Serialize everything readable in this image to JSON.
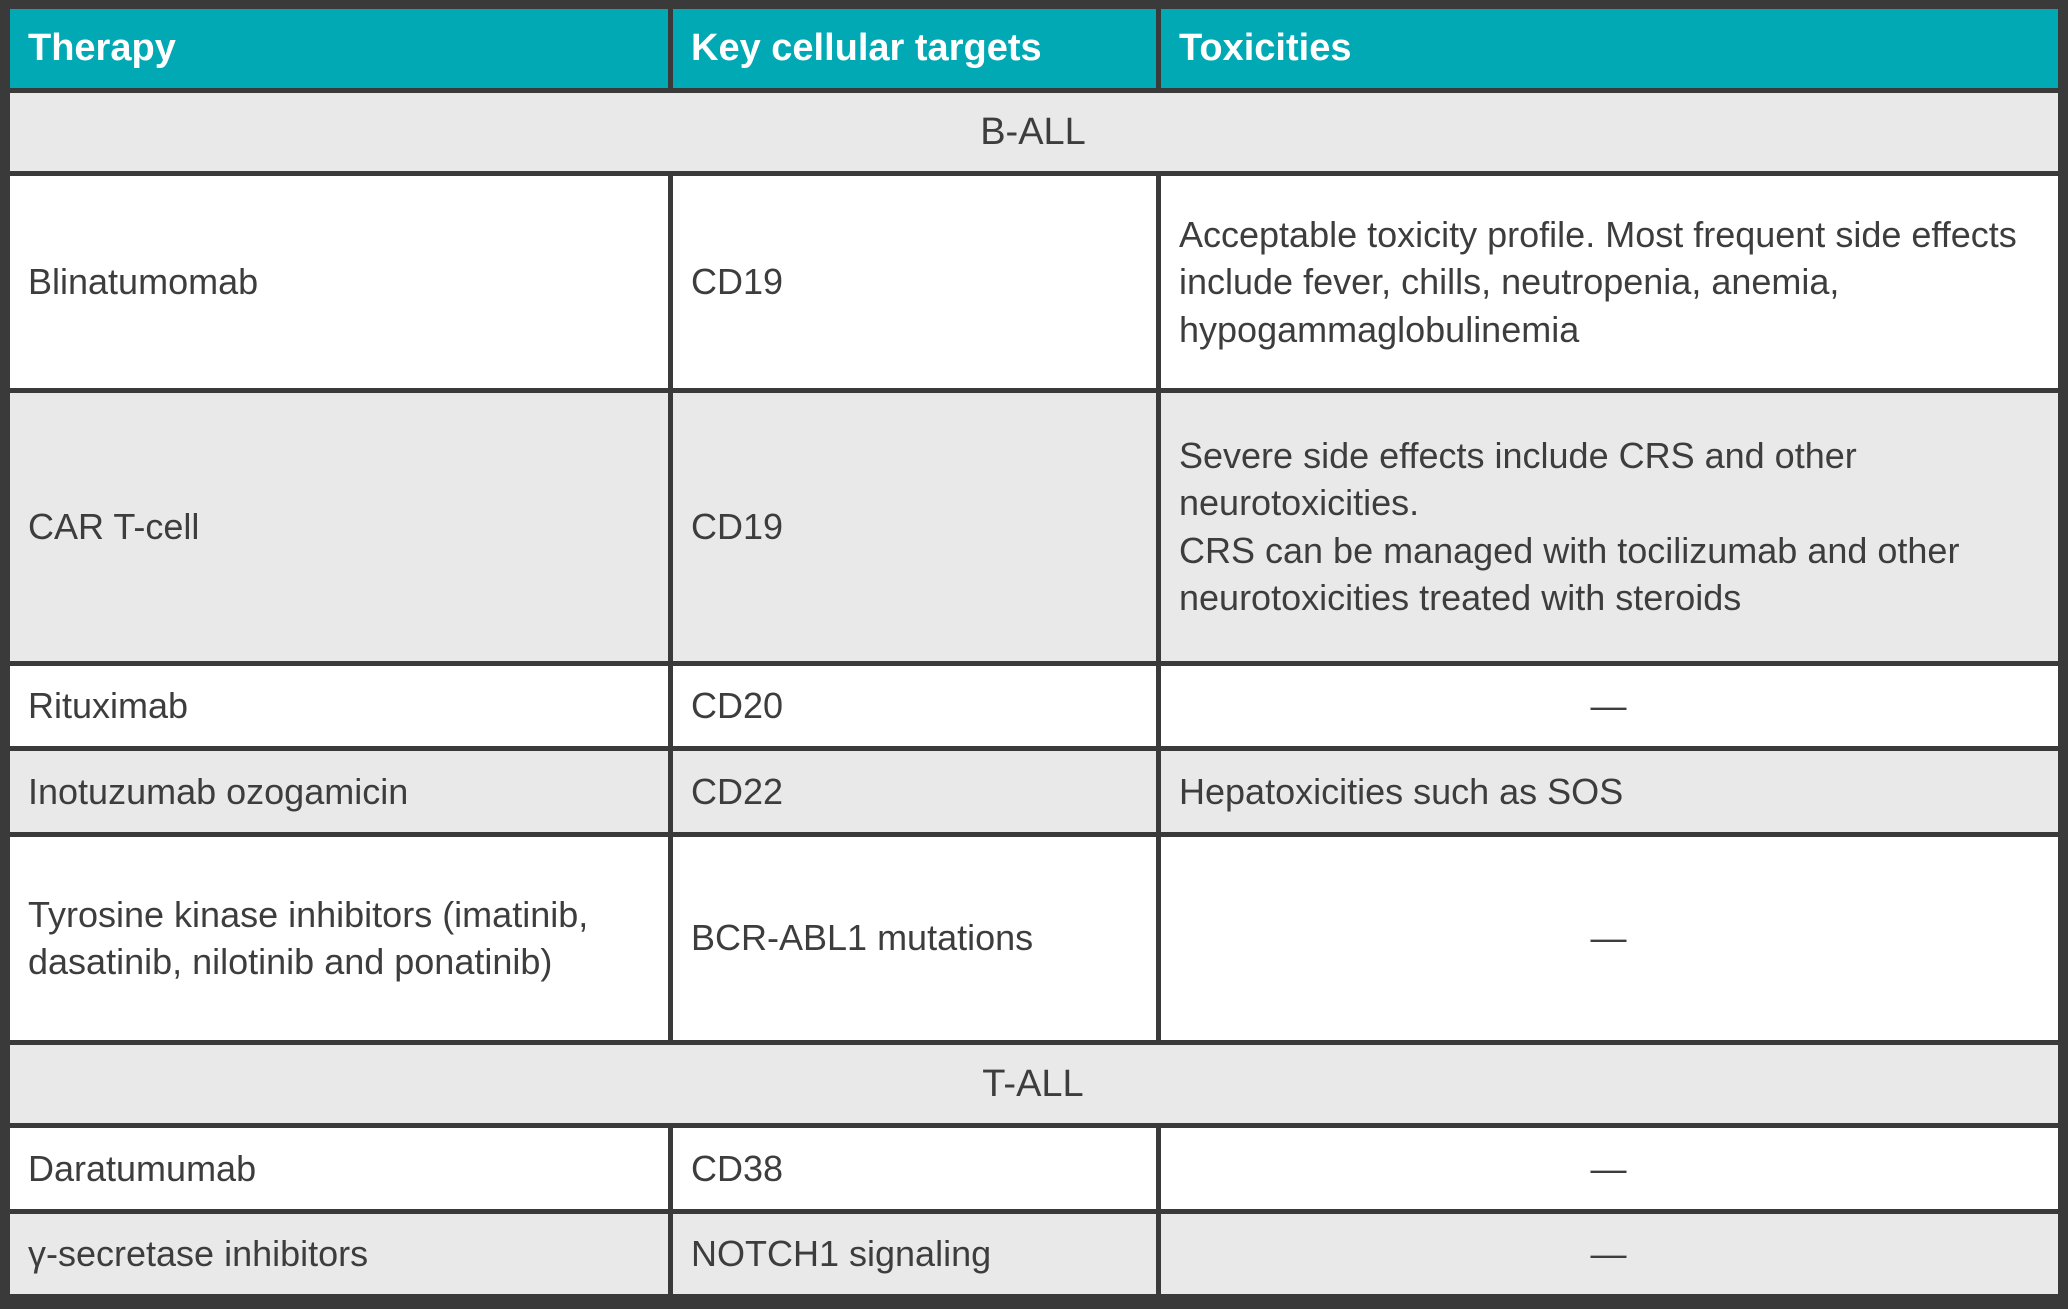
{
  "colors": {
    "accent": "#00a9b4",
    "border": "#3a3a3a",
    "row_alt": "#e9e9e9",
    "text": "#3d3d3d",
    "header_text": "#ffffff"
  },
  "table": {
    "columns": [
      {
        "label": "Therapy"
      },
      {
        "label": "Key cellular targets"
      },
      {
        "label": "Toxicities"
      }
    ],
    "empty_value": "—",
    "sections": [
      {
        "title": "B-ALL",
        "rows": [
          {
            "therapy": "Blinatumomab",
            "target": "CD19",
            "toxicity": "Acceptable toxicity profile. Most frequent side effects include fever, chills, neutropenia, anemia, hypogammaglobulinemia"
          },
          {
            "therapy": "CAR T-cell",
            "target": "CD19",
            "toxicity": "Severe side effects include CRS and other neurotoxicities.\nCRS can be managed with tocilizumab and other neurotoxicities treated with  steroids"
          },
          {
            "therapy": "Rituximab",
            "target": "CD20",
            "toxicity": "—"
          },
          {
            "therapy": "Inotuzumab ozogamicin",
            "target": "CD22",
            "toxicity": "Hepatoxicities such as SOS"
          },
          {
            "therapy": "Tyrosine kinase inhibitors (imatinib, dasatinib, nilotinib and ponatinib)",
            "target": "BCR-ABL1 mutations",
            "toxicity": "—"
          }
        ]
      },
      {
        "title": "T-ALL",
        "rows": [
          {
            "therapy": "Daratumumab",
            "target": "CD38",
            "toxicity": "—"
          },
          {
            "therapy": "γ-secretase inhibitors",
            "target": "NOTCH1 signaling",
            "toxicity": "—"
          }
        ]
      }
    ]
  }
}
